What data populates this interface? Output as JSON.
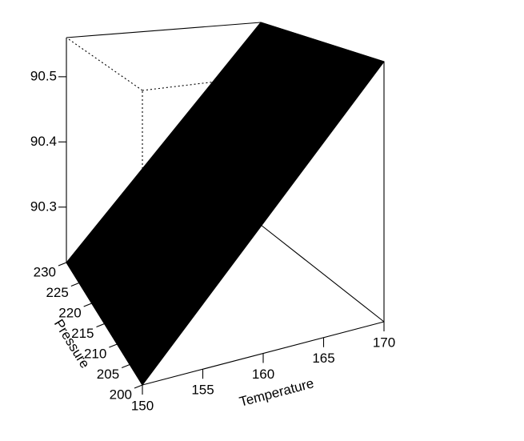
{
  "chart_data": {
    "type": "surface3d",
    "title": "",
    "xlabel": "Temperature",
    "ylabel": "Pressure",
    "zlabel": "",
    "x_ticks": [
      150,
      155,
      160,
      165,
      170
    ],
    "y_ticks": [
      200,
      205,
      210,
      215,
      220,
      225,
      230
    ],
    "z_ticks": [
      90.3,
      90.4,
      90.5
    ],
    "z_tick_labels": [
      "90.3",
      "90.4",
      "90.5"
    ],
    "xlim": [
      150,
      170
    ],
    "ylim": [
      200,
      230
    ],
    "surface_color": "#000000",
    "surface_corners": [
      {
        "x": 150,
        "y": 230,
        "z": 90.215
      },
      {
        "x": 150,
        "y": 200,
        "z": 90.215
      },
      {
        "x": 170,
        "y": 200,
        "z": 90.56
      },
      {
        "x": 170,
        "y": 230,
        "z": 90.56
      }
    ]
  }
}
